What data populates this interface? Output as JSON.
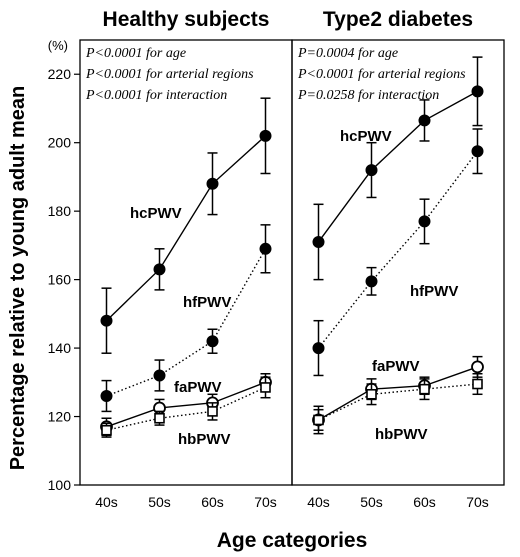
{
  "chart_data": [
    {
      "type": "line",
      "title": "Healthy subjects",
      "xlabel": "Age categories",
      "ylabel": "Percentage relative to young adult mean",
      "y_unit": "(%)",
      "ylim": [
        100,
        230
      ],
      "yticks": [
        100,
        120,
        140,
        160,
        180,
        200,
        220
      ],
      "categories": [
        "40s",
        "50s",
        "60s",
        "70s"
      ],
      "annotations": [
        "P<0.0001 for age",
        "P<0.0001 for arterial regions",
        "P<0.0001 for interaction"
      ],
      "series": [
        {
          "name": "hcPWV",
          "marker": "filled-circle",
          "line": "solid",
          "values": [
            148,
            163,
            188,
            202
          ],
          "errors": [
            9.5,
            6,
            9,
            11
          ]
        },
        {
          "name": "hfPWV",
          "marker": "filled-circle",
          "line": "dotted",
          "values": [
            126,
            132,
            142,
            169
          ],
          "errors": [
            4.5,
            4.5,
            3.5,
            7
          ]
        },
        {
          "name": "faPWV",
          "marker": "open-circle",
          "line": "solid",
          "values": [
            117,
            122.5,
            124,
            130
          ],
          "errors": [
            2.5,
            2.5,
            2.5,
            2.5
          ]
        },
        {
          "name": "hbPWV",
          "marker": "open-square",
          "line": "dotted",
          "values": [
            116,
            119.5,
            121.5,
            128.5
          ],
          "errors": [
            2,
            2,
            2.5,
            3
          ]
        }
      ]
    },
    {
      "type": "line",
      "title": "Type2 diabetes",
      "xlabel": "Age categories",
      "ylabel": "Percentage relative to young adult mean",
      "ylim": [
        100,
        230
      ],
      "categories": [
        "40s",
        "50s",
        "60s",
        "70s"
      ],
      "annotations": [
        "P=0.0004 for age",
        "P<0.0001 for arterial regions",
        "P=0.0258 for interaction"
      ],
      "series": [
        {
          "name": "hcPWV",
          "marker": "filled-circle",
          "line": "solid",
          "values": [
            171,
            192,
            206.5,
            215
          ],
          "errors": [
            11,
            8,
            6,
            10
          ]
        },
        {
          "name": "hfPWV",
          "marker": "filled-circle",
          "line": "dotted",
          "values": [
            140,
            159.5,
            177,
            197.5
          ],
          "errors": [
            8,
            4,
            6.5,
            6.5
          ]
        },
        {
          "name": "faPWV",
          "marker": "open-circle",
          "line": "solid",
          "values": [
            119,
            128,
            129,
            134.5
          ],
          "errors": [
            4,
            3,
            2.5,
            3
          ]
        },
        {
          "name": "hbPWV",
          "marker": "open-square",
          "line": "dotted",
          "values": [
            119,
            126.5,
            128,
            129.5
          ],
          "errors": [
            3,
            3,
            3,
            3
          ]
        }
      ]
    }
  ],
  "colors": {
    "ink": "#000000",
    "background": "#ffffff"
  }
}
